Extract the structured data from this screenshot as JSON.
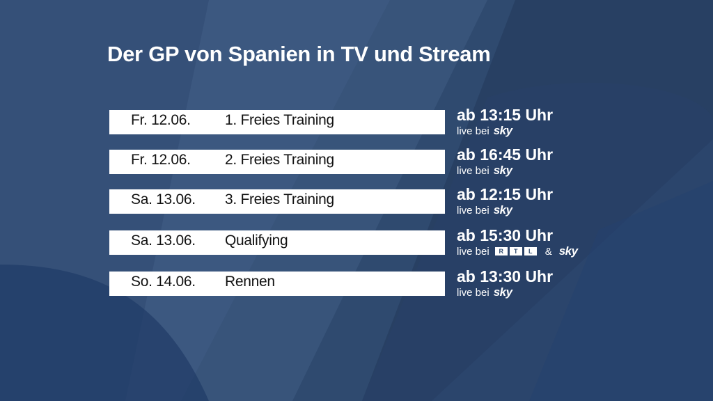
{
  "title": "Der GP von Spanien in TV und Stream",
  "colors": {
    "background": "#2f4a6f",
    "bar": "#ffffff",
    "text_dark": "#111111",
    "text_light": "#ffffff"
  },
  "schedule": [
    {
      "date": "Fr. 12.06.",
      "session": "1. Freies Training",
      "time": "ab 13:15 Uhr",
      "live_prefix": "live bei",
      "broadcaster": "sky"
    },
    {
      "date": "Fr. 12.06.",
      "session": "2. Freies Training",
      "time": "ab 16:45 Uhr",
      "live_prefix": "live bei",
      "broadcaster": "sky"
    },
    {
      "date": "Sa. 13.06.",
      "session": "3. Freies Training",
      "time": "ab 12:15 Uhr",
      "live_prefix": "live bei",
      "broadcaster": "sky"
    },
    {
      "date": "Sa. 13.06.",
      "session": "Qualifying",
      "time": "ab 15:30 Uhr",
      "live_prefix": "live bei",
      "broadcaster_logo": [
        "R",
        "T",
        "L"
      ],
      "amp": "&",
      "broadcaster": "sky"
    },
    {
      "date": "So. 14.06.",
      "session": "Rennen",
      "time": "ab 13:30 Uhr",
      "live_prefix": "live bei",
      "broadcaster": "sky"
    }
  ]
}
